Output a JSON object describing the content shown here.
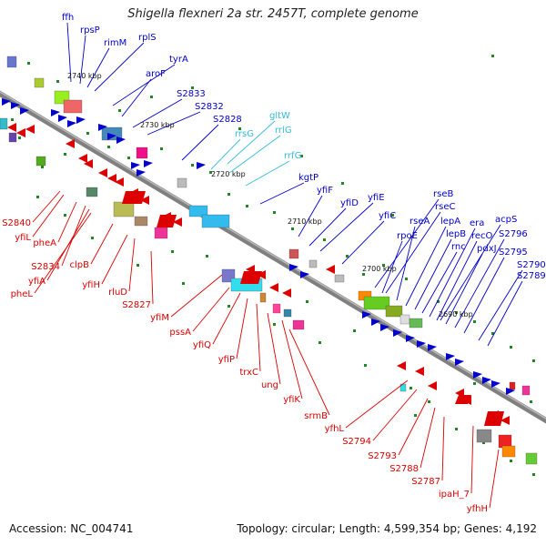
{
  "title": "Shigella flexneri 2a str. 2457T, complete genome",
  "footer": {
    "accession": "Accession: NC_004741",
    "topology": "Topology: circular; Length: 4,599,354 bp; Genes: 4,192"
  },
  "colors": {
    "forward": "#0000cc",
    "reverse": "#dd0000",
    "rna": "#33bbdd",
    "backbone": "#808080",
    "gc_marks": "#228822"
  },
  "ticks": [
    {
      "id": "t2740",
      "label": "2740 kbp"
    },
    {
      "id": "t2730",
      "label": "2730 kbp"
    },
    {
      "id": "t2720",
      "label": "2720 kbp"
    },
    {
      "id": "t2710",
      "label": "2710 kbp"
    },
    {
      "id": "t2700",
      "label": "2700 kbp"
    },
    {
      "id": "t2690",
      "label": "2690 kbp"
    }
  ],
  "genes_forward": [
    {
      "id": "ffh",
      "label": "ffh"
    },
    {
      "id": "rpsP",
      "label": "rpsP"
    },
    {
      "id": "rimM",
      "label": "rimM"
    },
    {
      "id": "rplS",
      "label": "rplS"
    },
    {
      "id": "tyrA",
      "label": "tyrA"
    },
    {
      "id": "aroF",
      "label": "aroF"
    },
    {
      "id": "S2833",
      "label": "S2833"
    },
    {
      "id": "S2832",
      "label": "S2832"
    },
    {
      "id": "S2828",
      "label": "S2828"
    },
    {
      "id": "kgtP",
      "label": "kgtP"
    },
    {
      "id": "yfiF",
      "label": "yfiF"
    },
    {
      "id": "yfiD",
      "label": "yfiD"
    },
    {
      "id": "yfiE",
      "label": "yfiE"
    },
    {
      "id": "yfiC",
      "label": "yfiC"
    },
    {
      "id": "rseB",
      "label": "rseB"
    },
    {
      "id": "rseC",
      "label": "rseC"
    },
    {
      "id": "rseA",
      "label": "rseA"
    },
    {
      "id": "rpoE",
      "label": "rpoE"
    },
    {
      "id": "lepA",
      "label": "lepA"
    },
    {
      "id": "lepB",
      "label": "lepB"
    },
    {
      "id": "rnc",
      "label": "rnc"
    },
    {
      "id": "era",
      "label": "era"
    },
    {
      "id": "acpS",
      "label": "acpS"
    },
    {
      "id": "recO",
      "label": "recO"
    },
    {
      "id": "pdxJ",
      "label": "pdxJ"
    },
    {
      "id": "S2796",
      "label": "S2796"
    },
    {
      "id": "S2795",
      "label": "S2795"
    },
    {
      "id": "S2790",
      "label": "S2790"
    },
    {
      "id": "S2789",
      "label": "S2789"
    }
  ],
  "genes_rna": [
    {
      "id": "gltW",
      "label": "gltW"
    },
    {
      "id": "rrsG",
      "label": "rrsG"
    },
    {
      "id": "rrlG",
      "label": "rrlG"
    },
    {
      "id": "rrfG",
      "label": "rrfG"
    }
  ],
  "genes_reverse": [
    {
      "id": "S2840",
      "label": "S2840"
    },
    {
      "id": "yfiL",
      "label": "yfiL"
    },
    {
      "id": "pheA",
      "label": "pheA"
    },
    {
      "id": "S2834",
      "label": "S2834"
    },
    {
      "id": "yfiA",
      "label": "yfiA"
    },
    {
      "id": "pheL",
      "label": "pheL"
    },
    {
      "id": "clpB",
      "label": "clpB"
    },
    {
      "id": "yfiH",
      "label": "yfiH"
    },
    {
      "id": "rluD",
      "label": "rluD"
    },
    {
      "id": "S2827",
      "label": "S2827"
    },
    {
      "id": "yfiM",
      "label": "yfiM"
    },
    {
      "id": "pssA",
      "label": "pssA"
    },
    {
      "id": "yfiQ",
      "label": "yfiQ"
    },
    {
      "id": "yfiP",
      "label": "yfiP"
    },
    {
      "id": "trxC",
      "label": "trxC"
    },
    {
      "id": "ung",
      "label": "ung"
    },
    {
      "id": "yfiK",
      "label": "yfiK"
    },
    {
      "id": "srmB",
      "label": "srmB"
    },
    {
      "id": "yfhL",
      "label": "yfhL"
    },
    {
      "id": "S2794",
      "label": "S2794"
    },
    {
      "id": "S2793",
      "label": "S2793"
    },
    {
      "id": "S2788",
      "label": "S2788"
    },
    {
      "id": "S2787",
      "label": "S2787"
    },
    {
      "id": "ipaH_7",
      "label": "ipaH_7"
    },
    {
      "id": "yfhH",
      "label": "yfhH"
    }
  ]
}
